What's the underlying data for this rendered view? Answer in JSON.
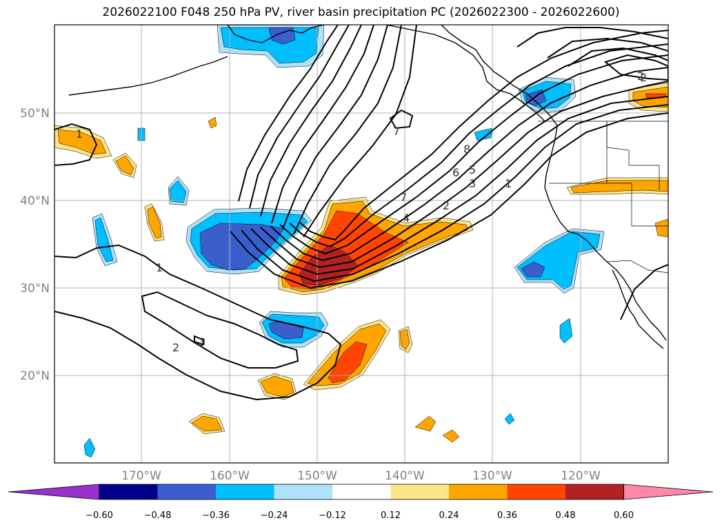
{
  "title": "2026022100 F048 250 hPa PV, river basin precipitation PC (2026022300 - 2026022600)",
  "colors": {
    "c_neg_ext": "#9932cc",
    "c_neg_060": "#00008b",
    "c_neg_048": "#3a5fcd",
    "c_neg_036": "#00bfff",
    "c_neg_024": "#afe1fa",
    "c_zero": "#ffffff",
    "c_pos_012": "#fde68a",
    "c_pos_024": "#ffa500",
    "c_pos_036": "#ff4500",
    "c_pos_048": "#b22222",
    "c_pos_ext": "#ff88aa",
    "contour": "#000000",
    "grid": "#b0b0b0"
  },
  "map": {
    "lon_labels": [
      "170°W",
      "160°W",
      "150°W",
      "140°W",
      "130°W",
      "120°W"
    ],
    "lat_labels": [
      "50°N",
      "40°N",
      "30°N",
      "20°N"
    ],
    "contour_labels": [
      "1",
      "1",
      "2",
      "3",
      "2",
      "3",
      "4",
      "7",
      "6",
      "5",
      "8",
      "7",
      "2",
      "1",
      "2"
    ]
  },
  "colorbar": {
    "ticks": [
      "−0.60",
      "−0.48",
      "−0.36",
      "−0.24",
      "−0.12",
      "0.12",
      "0.24",
      "0.36",
      "0.48",
      "0.60"
    ]
  }
}
